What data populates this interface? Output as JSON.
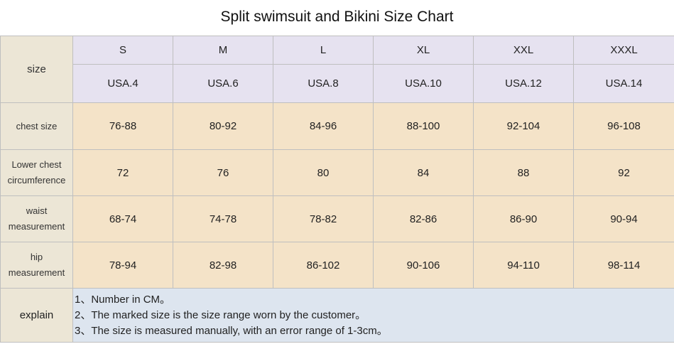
{
  "title": "Split swimsuit and Bikini Size Chart",
  "row_header_size": "size",
  "sizes": [
    "S",
    "M",
    "L",
    "XL",
    "XXL",
    "XXXL"
  ],
  "usa_sizes": [
    "USA.4",
    "USA.6",
    "USA.8",
    "USA.10",
    "USA.12",
    "USA.14"
  ],
  "rows": [
    {
      "label": "chest size",
      "values": [
        "76-88",
        "80-92",
        "84-96",
        "88-100",
        "92-104",
        "96-108"
      ]
    },
    {
      "label_line1": "Lower chest",
      "label_line2": "circumference",
      "values": [
        "72",
        "76",
        "80",
        "84",
        "88",
        "92"
      ]
    },
    {
      "label_line1": "waist",
      "label_line2": "measurement",
      "values": [
        "68-74",
        "74-78",
        "78-82",
        "82-86",
        "86-90",
        "90-94"
      ]
    },
    {
      "label_line1": "hip",
      "label_line2": "measurement",
      "values": [
        "78-94",
        "82-98",
        "86-102",
        "90-106",
        "94-110",
        "98-114"
      ]
    }
  ],
  "explain": {
    "label": "explain",
    "lines": [
      "1、Number in CM。",
      "2、The marked size is the size range worn by the customer。",
      "3、The size is measured manually, with an error range of 1-3cm。"
    ]
  }
}
